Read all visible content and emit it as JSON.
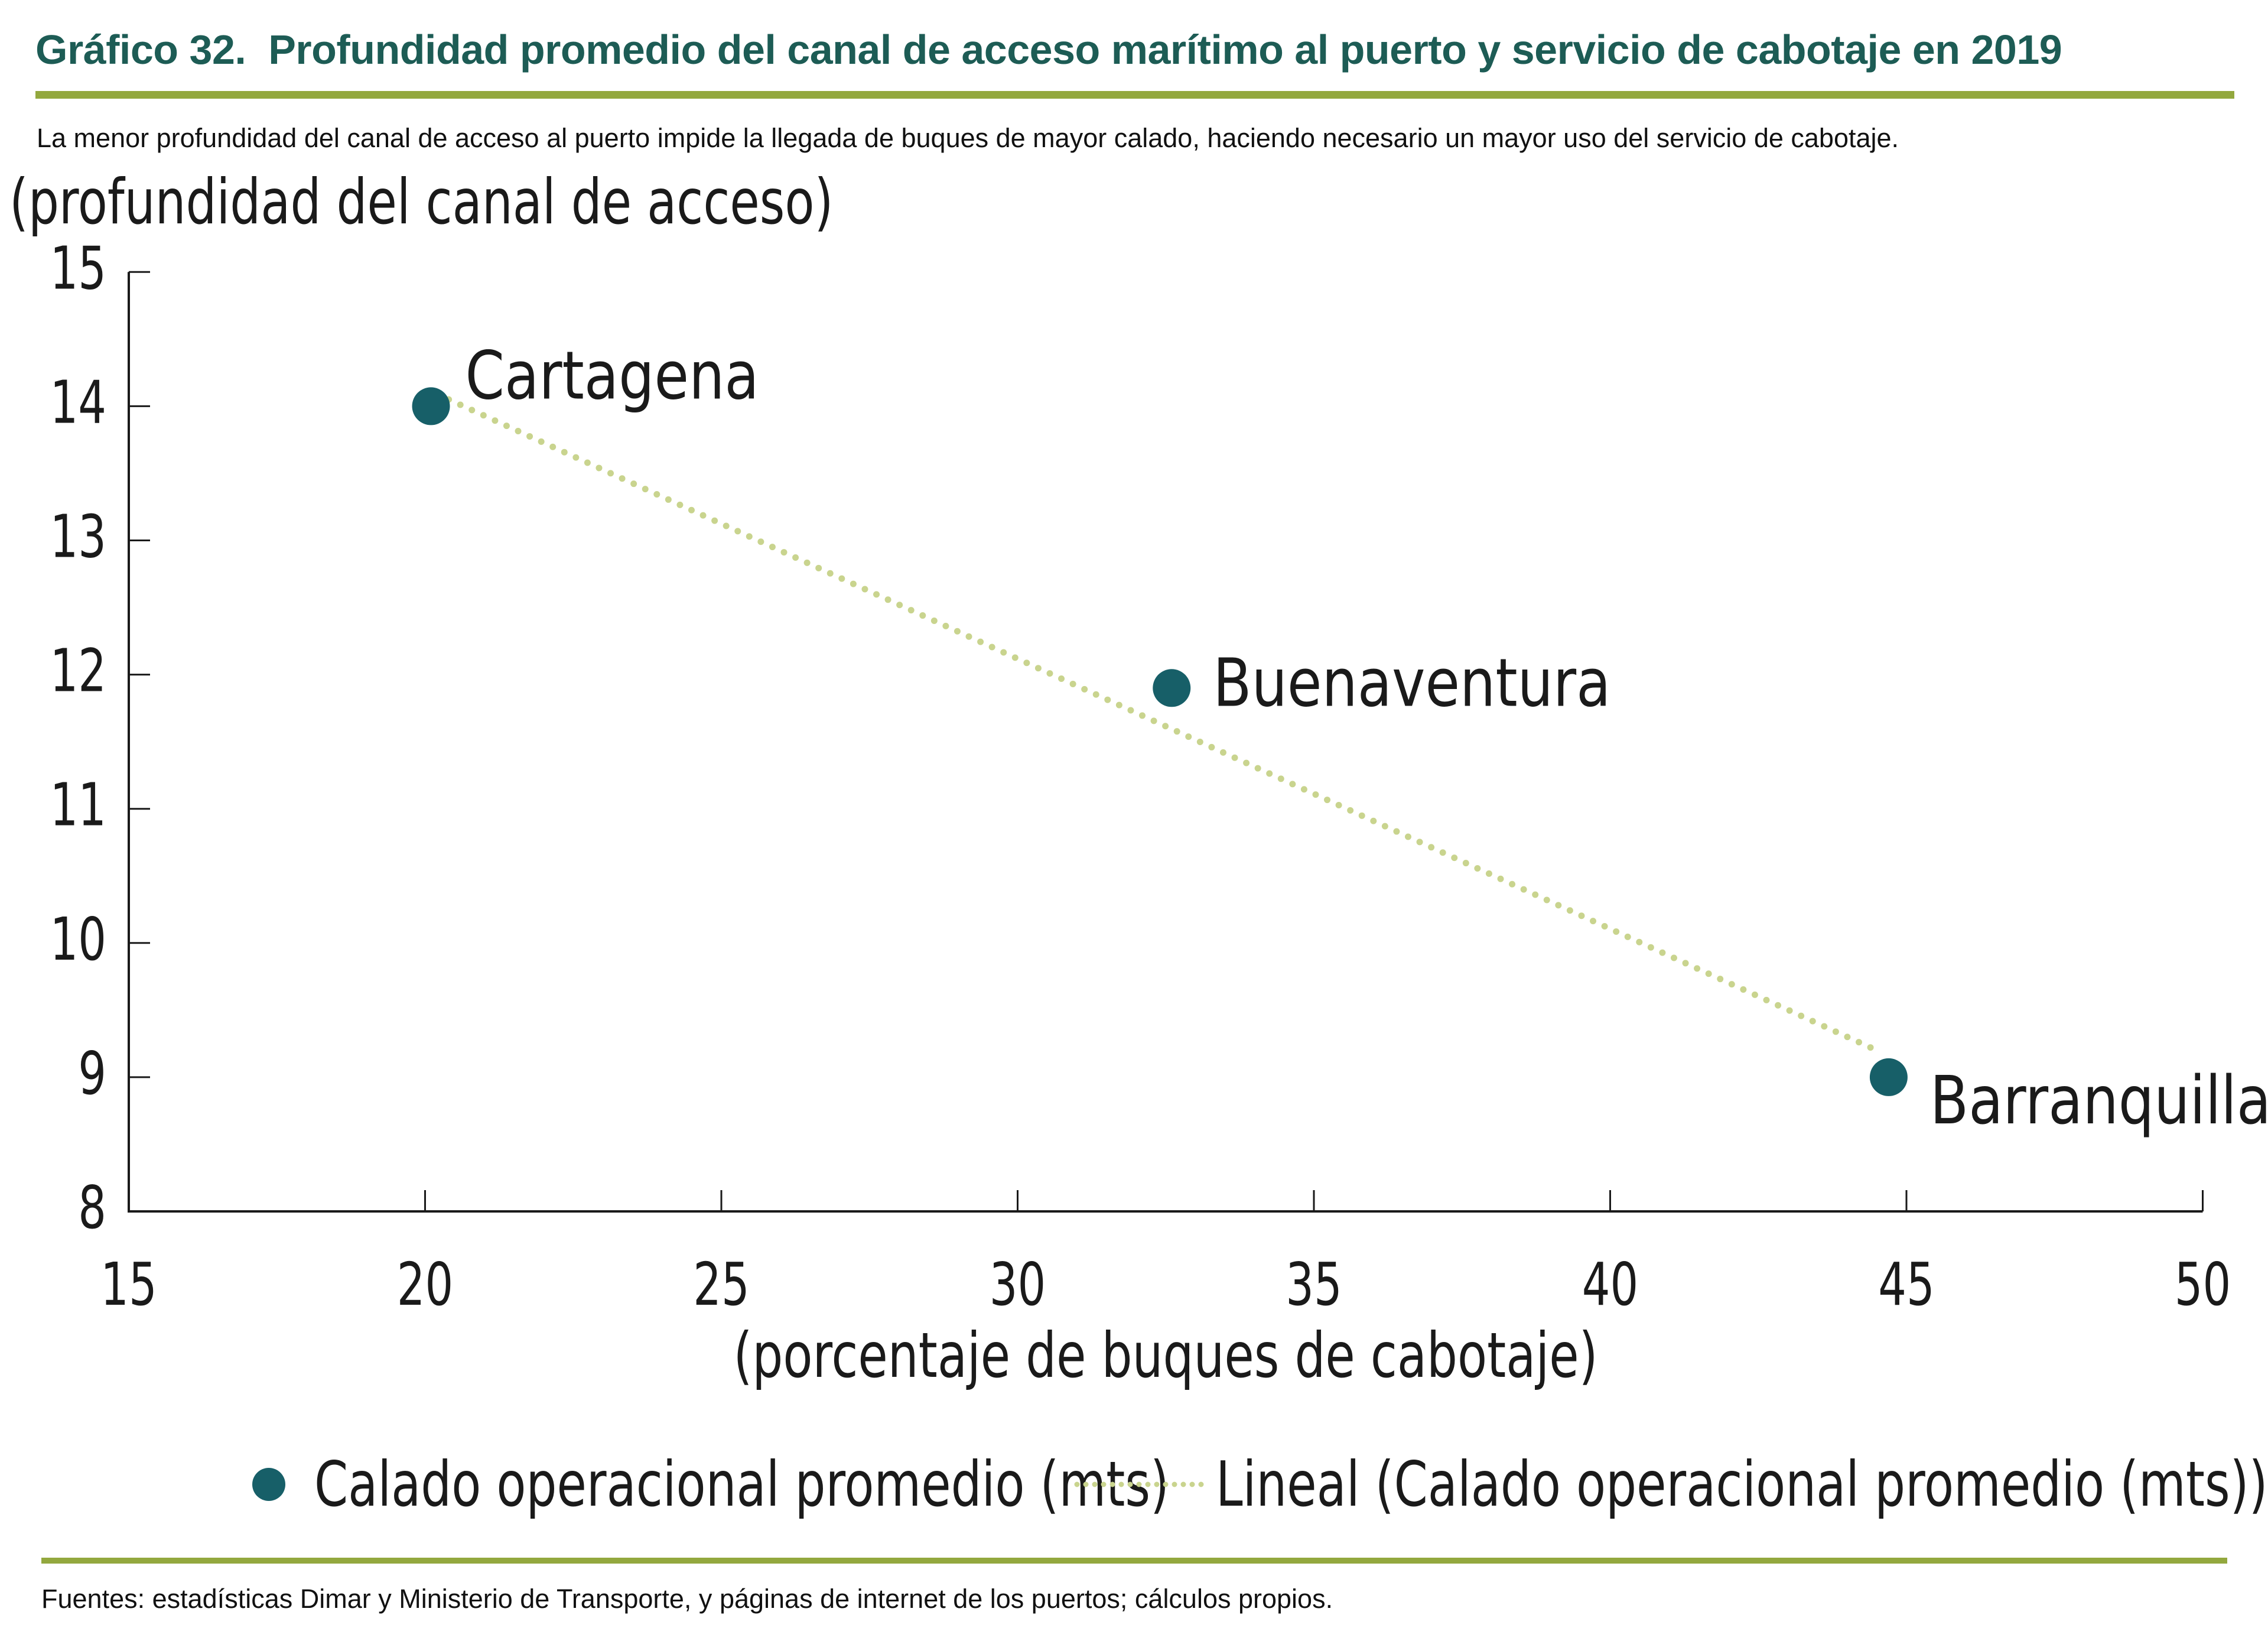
{
  "header": {
    "title": "Gráfico 32.  Profundidad promedio del canal de acceso marítimo al puerto y servicio de cabotaje en 2019",
    "subtitle": "La menor profundidad del canal de acceso al puerto impide la llegada de buques de mayor calado, haciendo necesario un mayor uso del servicio de cabotaje."
  },
  "legend": {
    "marker_label": "Calado operacional promedio (mts)",
    "trend_label": "Lineal (Calado operacional promedio (mts))"
  },
  "footer": {
    "source": "Fuentes: estadísticas Dimar y Ministerio de Transporte, y páginas de internet de los puertos; cálculos propios."
  },
  "chart_data": {
    "type": "scatter",
    "title": "Profundidad promedio del canal de acceso marítimo al puerto y servicio de cabotaje en 2019",
    "xlabel": "(porcentaje de buques de cabotaje)",
    "ylabel": "(profundidad del canal de acceso)",
    "xlim": [
      15,
      50
    ],
    "ylim": [
      8,
      15
    ],
    "x_ticks": [
      15,
      20,
      25,
      30,
      35,
      40,
      45,
      50
    ],
    "y_ticks": [
      8,
      9,
      10,
      11,
      12,
      13,
      14,
      15
    ],
    "grid": false,
    "legend_position": "bottom",
    "series": [
      {
        "name": "Calado operacional promedio (mts)",
        "points": [
          {
            "label": "Cartagena",
            "x": 20.1,
            "y": 14.0
          },
          {
            "label": "Buenaventura",
            "x": 32.6,
            "y": 11.9
          },
          {
            "label": "Barranquilla",
            "x": 44.7,
            "y": 9.0
          }
        ]
      }
    ],
    "trendline": {
      "name": "Lineal (Calado operacional promedio (mts))",
      "x1": 20.4,
      "y1": 14.05,
      "x2": 44.5,
      "y2": 9.2
    },
    "colors": {
      "point": "#175f68",
      "trend": "#c9d48e",
      "title": "#1d5c55",
      "rule": "#93a83e",
      "text": "#1a1a1a"
    }
  }
}
